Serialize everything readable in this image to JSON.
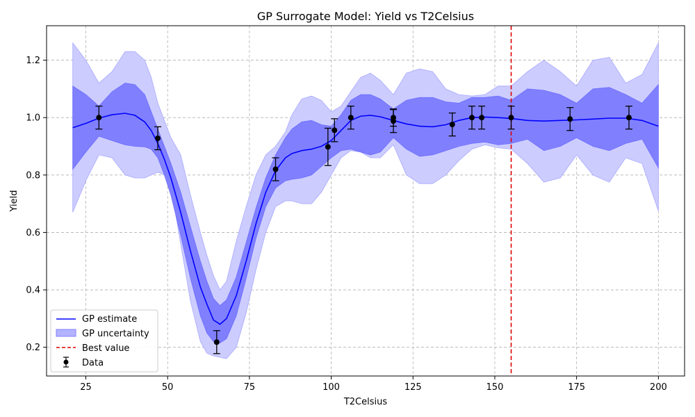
{
  "chart_data": {
    "type": "line",
    "title": "GP Surrogate Model: Yield vs T2Celsius",
    "xlabel": "T2Celsius",
    "ylabel": "Yield",
    "xlim": [
      13,
      208
    ],
    "ylim": [
      0.1,
      1.32
    ],
    "xticks": [
      25,
      50,
      75,
      100,
      125,
      150,
      175,
      200
    ],
    "yticks": [
      0.2,
      0.4,
      0.6,
      0.8,
      1.0,
      1.2
    ],
    "xtick_labels": [
      "25",
      "50",
      "75",
      "100",
      "125",
      "150",
      "175",
      "200"
    ],
    "ytick_labels": [
      "0.2",
      "0.4",
      "0.6",
      "0.8",
      "1.0",
      "1.2"
    ],
    "grid": true,
    "legend_position": "lower-left",
    "colors": {
      "gp_estimate": "#0000ff",
      "band_inner": "#8080ff",
      "band_outer": "#ccccff",
      "best_value": "#dd0000",
      "data": "#000000"
    },
    "series": [
      {
        "name": "GP estimate",
        "kind": "line",
        "x": [
          21,
          25,
          29,
          33,
          37,
          40,
          43,
          45,
          47,
          49,
          51,
          54,
          57,
          60,
          62,
          64,
          66,
          68,
          71,
          74,
          77,
          80,
          83,
          86,
          88,
          91,
          94,
          97,
          100,
          103,
          106,
          109,
          112,
          115,
          119,
          123,
          127,
          131,
          135,
          139,
          143,
          147,
          151,
          155,
          160,
          165,
          170,
          175,
          180,
          185,
          190,
          195,
          200
        ],
        "y": [
          0.965,
          0.98,
          0.998,
          1.01,
          1.015,
          1.008,
          0.985,
          0.955,
          0.91,
          0.855,
          0.79,
          0.67,
          0.535,
          0.41,
          0.35,
          0.295,
          0.28,
          0.3,
          0.38,
          0.5,
          0.63,
          0.74,
          0.815,
          0.86,
          0.875,
          0.885,
          0.89,
          0.9,
          0.92,
          0.955,
          0.99,
          1.005,
          1.008,
          1.003,
          0.99,
          0.978,
          0.97,
          0.968,
          0.975,
          0.99,
          1.0,
          1.002,
          1.0,
          0.997,
          0.99,
          0.988,
          0.99,
          0.992,
          0.995,
          0.998,
          0.998,
          0.99,
          0.97
        ]
      },
      {
        "name": "GP uncertainty",
        "kind": "band",
        "x": [
          21,
          25,
          29,
          33,
          37,
          40,
          43,
          45,
          47,
          49,
          51,
          54,
          57,
          60,
          62,
          64,
          66,
          68,
          71,
          74,
          77,
          80,
          83,
          86,
          88,
          91,
          94,
          97,
          100,
          103,
          106,
          109,
          112,
          115,
          119,
          123,
          127,
          131,
          135,
          139,
          143,
          147,
          151,
          155,
          160,
          165,
          170,
          175,
          180,
          185,
          190,
          195,
          200
        ],
        "inner_lower": [
          0.82,
          0.88,
          0.935,
          0.92,
          0.905,
          0.9,
          0.898,
          0.89,
          0.86,
          0.8,
          0.73,
          0.59,
          0.44,
          0.31,
          0.25,
          0.22,
          0.215,
          0.23,
          0.31,
          0.44,
          0.58,
          0.69,
          0.755,
          0.78,
          0.785,
          0.79,
          0.8,
          0.83,
          0.86,
          0.885,
          0.89,
          0.88,
          0.87,
          0.88,
          0.93,
          0.89,
          0.865,
          0.87,
          0.885,
          0.9,
          0.91,
          0.915,
          0.905,
          0.91,
          0.925,
          0.885,
          0.9,
          0.93,
          0.9,
          0.885,
          0.91,
          0.925,
          0.825
        ],
        "inner_upper": [
          1.11,
          1.08,
          1.04,
          1.09,
          1.12,
          1.115,
          1.08,
          1.02,
          0.96,
          0.9,
          0.84,
          0.74,
          0.62,
          0.5,
          0.43,
          0.37,
          0.345,
          0.365,
          0.445,
          0.565,
          0.685,
          0.79,
          0.87,
          0.93,
          0.96,
          0.985,
          0.99,
          0.975,
          0.97,
          1.01,
          1.06,
          1.08,
          1.08,
          1.065,
          1.03,
          1.06,
          1.07,
          1.07,
          1.055,
          1.05,
          1.07,
          1.07,
          1.075,
          1.06,
          1.1,
          1.095,
          1.08,
          1.05,
          1.1,
          1.105,
          1.08,
          1.05,
          1.115
        ],
        "outer_lower": [
          0.67,
          0.78,
          0.87,
          0.86,
          0.8,
          0.79,
          0.79,
          0.8,
          0.81,
          0.8,
          0.76,
          0.56,
          0.36,
          0.22,
          0.18,
          0.17,
          0.165,
          0.16,
          0.2,
          0.32,
          0.47,
          0.6,
          0.69,
          0.71,
          0.71,
          0.7,
          0.7,
          0.74,
          0.8,
          0.86,
          0.885,
          0.88,
          0.86,
          0.86,
          0.905,
          0.8,
          0.77,
          0.77,
          0.8,
          0.85,
          0.89,
          0.905,
          0.895,
          0.89,
          0.84,
          0.775,
          0.79,
          0.87,
          0.8,
          0.775,
          0.86,
          0.84,
          0.675
        ],
        "outer_upper": [
          1.26,
          1.2,
          1.12,
          1.16,
          1.23,
          1.23,
          1.2,
          1.14,
          1.05,
          0.99,
          0.93,
          0.87,
          0.73,
          0.6,
          0.52,
          0.45,
          0.4,
          0.43,
          0.57,
          0.69,
          0.8,
          0.87,
          0.9,
          0.95,
          1.01,
          1.065,
          1.075,
          1.06,
          1.02,
          1.04,
          1.09,
          1.14,
          1.155,
          1.13,
          1.08,
          1.155,
          1.17,
          1.16,
          1.1,
          1.08,
          1.075,
          1.08,
          1.11,
          1.11,
          1.16,
          1.2,
          1.16,
          1.11,
          1.2,
          1.21,
          1.12,
          1.15,
          1.26
        ]
      },
      {
        "name": "Best value",
        "kind": "vline",
        "x": 155
      },
      {
        "name": "Data",
        "kind": "errorbar",
        "x": [
          29,
          47,
          65,
          83,
          99,
          101,
          106,
          119,
          119,
          137,
          143,
          146,
          155,
          173,
          191
        ],
        "y": [
          1.0,
          0.928,
          0.218,
          0.82,
          0.898,
          0.956,
          1.0,
          0.988,
          1.0,
          0.976,
          1.0,
          1.0,
          1.0,
          0.995,
          1.0
        ],
        "yerr": [
          0.04,
          0.04,
          0.04,
          0.04,
          0.065,
          0.04,
          0.04,
          0.04,
          0.03,
          0.04,
          0.04,
          0.04,
          0.04,
          0.04,
          0.04
        ]
      }
    ]
  }
}
